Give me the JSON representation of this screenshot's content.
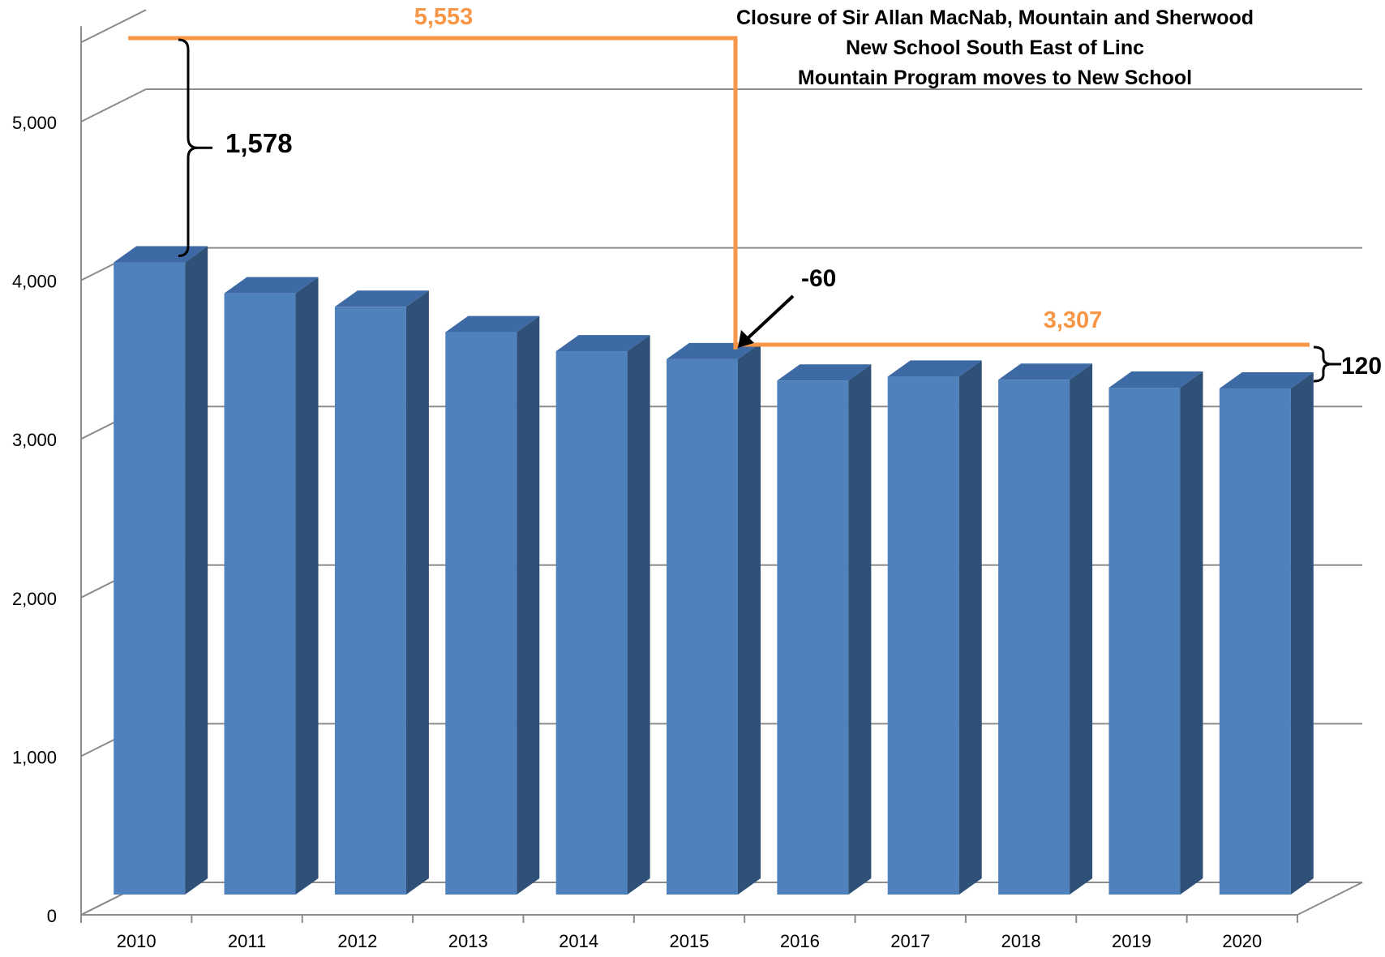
{
  "chart_data": {
    "type": "bar",
    "style": "3d-column",
    "categories": [
      "2010",
      "2011",
      "2012",
      "2013",
      "2014",
      "2015",
      "2016",
      "2017",
      "2018",
      "2019",
      "2020"
    ],
    "values": [
      3985,
      3790,
      3705,
      3545,
      3425,
      3375,
      3240,
      3265,
      3245,
      3195,
      3190
    ],
    "ylim": [
      0,
      5500
    ],
    "yticks": [
      0,
      1000,
      2000,
      3000,
      4000,
      5000
    ],
    "ytick_labels": [
      "0",
      "1,000",
      "2,000",
      "3,000",
      "4,000",
      "5,000"
    ],
    "grid": true,
    "colors": {
      "bar_front": "#4f81bd",
      "bar_side": "#2f5178",
      "bar_top": "#3d6aa5",
      "accent": "#f79646",
      "grid": "#8c8c8c"
    },
    "title_lines": [
      "Closure of Sir Allan MacNab, Mountain and Sherwood",
      "New School South East of Linc",
      "Mountain Program moves to New School"
    ],
    "annotations": {
      "capacity_before": "5,553",
      "capacity_after": "3,307",
      "gap_before": "1,578",
      "gap_after": "120",
      "change_label": "-60"
    }
  }
}
